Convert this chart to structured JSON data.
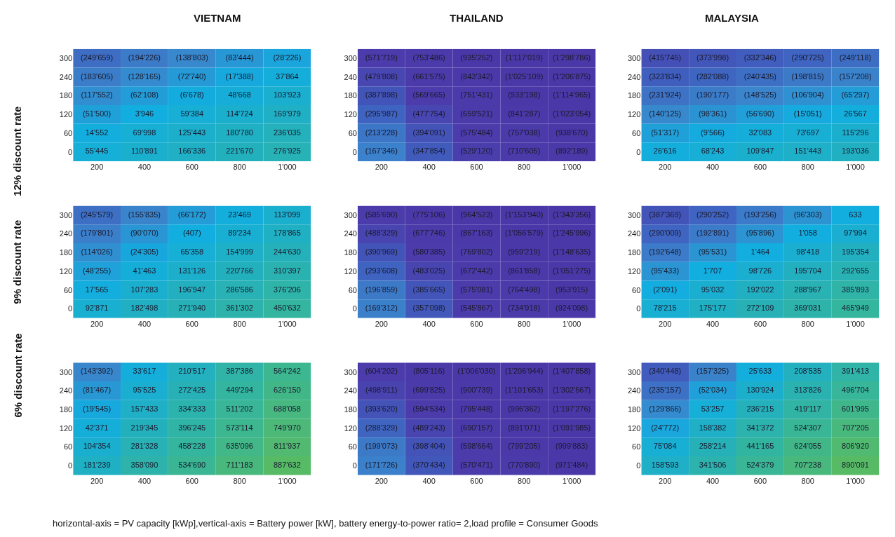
{
  "chart_data": [
    {
      "type": "heatmap",
      "title": "VIETNAM",
      "ylabel": "12% discount rate",
      "categories": [
        "200",
        "400",
        "600",
        "800",
        "1'000"
      ],
      "y_categories": [
        "300",
        "240",
        "180",
        "120",
        "60",
        "0"
      ],
      "cells": [
        [
          -249659,
          -194226,
          -138803,
          -83444,
          -28226
        ],
        [
          -183605,
          -128165,
          -72740,
          -17388,
          37864
        ],
        [
          -117552,
          -62108,
          -6678,
          48668,
          103923
        ],
        [
          -51500,
          3946,
          59384,
          114724,
          169979
        ],
        [
          14552,
          69998,
          125443,
          180780,
          236035
        ],
        [
          55445,
          110891,
          166336,
          221670,
          276925
        ]
      ],
      "cell_labels": [
        [
          "(249'659)",
          "(194'226)",
          "(138'803)",
          "(83'444)",
          "(28'226)"
        ],
        [
          "(183'605)",
          "(128'165)",
          "(72'740)",
          "(17'388)",
          "37'864"
        ],
        [
          "(117'552)",
          "(62'108)",
          "(6'678)",
          "48'668",
          "103'923"
        ],
        [
          "(51'500)",
          "3'946",
          "59'384",
          "114'724",
          "169'979"
        ],
        [
          "14'552",
          "69'998",
          "125'443",
          "180'780",
          "236'035"
        ],
        [
          "55'445",
          "110'891",
          "166'336",
          "221'670",
          "276'925"
        ]
      ]
    },
    {
      "type": "heatmap",
      "title": "THAILAND",
      "categories": [
        "200",
        "400",
        "600",
        "800",
        "1'000"
      ],
      "y_categories": [
        "300",
        "240",
        "180",
        "120",
        "60",
        "0"
      ],
      "cells": [
        [
          -571719,
          -753486,
          -935252,
          -1117019,
          -1298786
        ],
        [
          -479808,
          -661575,
          -843342,
          -1025109,
          -1206875
        ],
        [
          -387898,
          -569665,
          -751431,
          -933198,
          -1114965
        ],
        [
          -295987,
          -477754,
          -659521,
          -841287,
          -1023054
        ],
        [
          -213228,
          -394091,
          -575484,
          -757038,
          -938670
        ],
        [
          -167346,
          -347854,
          -529120,
          -710605,
          -892189
        ]
      ],
      "cell_labels": [
        [
          "(571'719)",
          "(753'486)",
          "(935'252)",
          "(1'117'019)",
          "(1'298'786)"
        ],
        [
          "(479'808)",
          "(661'575)",
          "(843'342)",
          "(1'025'109)",
          "(1'206'875)"
        ],
        [
          "(387'898)",
          "(569'665)",
          "(751'431)",
          "(933'198)",
          "(1'114'965)"
        ],
        [
          "(295'987)",
          "(477'754)",
          "(659'521)",
          "(841'287)",
          "(1'023'054)"
        ],
        [
          "(213'228)",
          "(394'091)",
          "(575'484)",
          "(757'038)",
          "(938'670)"
        ],
        [
          "(167'346)",
          "(347'854)",
          "(529'120)",
          "(710'605)",
          "(892'189)"
        ]
      ]
    },
    {
      "type": "heatmap",
      "title": "MALAYSIA",
      "categories": [
        "200",
        "400",
        "600",
        "800",
        "1'000"
      ],
      "y_categories": [
        "300",
        "240",
        "180",
        "120",
        "60",
        "0"
      ],
      "cells": [
        [
          -415745,
          -373998,
          -332346,
          -290725,
          -249118
        ],
        [
          -323834,
          -282088,
          -240435,
          -198815,
          -157208
        ],
        [
          -231924,
          -190177,
          -148525,
          -106904,
          -65297
        ],
        [
          -140125,
          -98361,
          -56690,
          -15051,
          26567
        ],
        [
          -51317,
          -9566,
          32083,
          73697,
          115296
        ],
        [
          26616,
          68243,
          109847,
          151443,
          193036
        ]
      ],
      "cell_labels": [
        [
          "(415'745)",
          "(373'998)",
          "(332'346)",
          "(290'725)",
          "(249'118)"
        ],
        [
          "(323'834)",
          "(282'088)",
          "(240'435)",
          "(198'815)",
          "(157'208)"
        ],
        [
          "(231'924)",
          "(190'177)",
          "(148'525)",
          "(106'904)",
          "(65'297)"
        ],
        [
          "(140'125)",
          "(98'361)",
          "(56'690)",
          "(15'051)",
          "26'567"
        ],
        [
          "(51'317)",
          "(9'566)",
          "32'083",
          "73'697",
          "115'296"
        ],
        [
          "26'616",
          "68'243",
          "109'847",
          "151'443",
          "193'036"
        ]
      ]
    },
    {
      "type": "heatmap",
      "ylabel": "9% discount rate",
      "categories": [
        "200",
        "400",
        "600",
        "800",
        "1'000"
      ],
      "y_categories": [
        "300",
        "240",
        "180",
        "120",
        "60",
        "0"
      ],
      "cells": [
        [
          -245579,
          -155835,
          -66172,
          23469,
          113099
        ],
        [
          -179801,
          -90070,
          -407,
          89234,
          178865
        ],
        [
          -114026,
          -24305,
          65358,
          154999,
          244630
        ],
        [
          -48255,
          41463,
          131126,
          220766,
          310397
        ],
        [
          17565,
          107283,
          196947,
          286586,
          376206
        ],
        [
          92871,
          182498,
          271940,
          361302,
          450632
        ]
      ],
      "cell_labels": [
        [
          "(245'579)",
          "(155'835)",
          "(66'172)",
          "23'469",
          "113'099"
        ],
        [
          "(179'801)",
          "(90'070)",
          "(407)",
          "89'234",
          "178'865"
        ],
        [
          "(114'026)",
          "(24'305)",
          "65'358",
          "154'999",
          "244'630"
        ],
        [
          "(48'255)",
          "41'463",
          "131'126",
          "220'766",
          "310'397"
        ],
        [
          "17'565",
          "107'283",
          "196'947",
          "286'586",
          "376'206"
        ],
        [
          "92'871",
          "182'498",
          "271'940",
          "361'302",
          "450'632"
        ]
      ]
    },
    {
      "type": "heatmap",
      "categories": [
        "200",
        "400",
        "600",
        "800",
        "1'000"
      ],
      "y_categories": [
        "300",
        "240",
        "180",
        "120",
        "60",
        "0"
      ],
      "cells": [
        [
          -585690,
          -775106,
          -964523,
          -1153940,
          -1343356
        ],
        [
          -488329,
          -677746,
          -867163,
          -1056579,
          -1245996
        ],
        [
          -390969,
          -580385,
          -769802,
          -959219,
          -1148635
        ],
        [
          -293608,
          -483025,
          -672442,
          -861858,
          -1051275
        ],
        [
          -196859,
          -385665,
          -575081,
          -764498,
          -953915
        ],
        [
          -169312,
          -357098,
          -545867,
          -734918,
          -924098
        ]
      ],
      "cell_labels": [
        [
          "(585'690)",
          "(775'106)",
          "(964'523)",
          "(1'153'940)",
          "(1'343'356)"
        ],
        [
          "(488'329)",
          "(677'746)",
          "(867'163)",
          "(1'056'579)",
          "(1'245'996)"
        ],
        [
          "(390'969)",
          "(580'385)",
          "(769'802)",
          "(959'219)",
          "(1'148'635)"
        ],
        [
          "(293'608)",
          "(483'025)",
          "(672'442)",
          "(861'858)",
          "(1'051'275)"
        ],
        [
          "(196'859)",
          "(385'665)",
          "(575'081)",
          "(764'498)",
          "(953'915)"
        ],
        [
          "(169'312)",
          "(357'098)",
          "(545'867)",
          "(734'918)",
          "(924'098)"
        ]
      ]
    },
    {
      "type": "heatmap",
      "categories": [
        "200",
        "400",
        "600",
        "800",
        "1'000"
      ],
      "y_categories": [
        "300",
        "240",
        "180",
        "120",
        "60",
        "0"
      ],
      "cells": [
        [
          -387369,
          -290252,
          -193256,
          -96303,
          633
        ],
        [
          -290009,
          -192891,
          -95896,
          1058,
          97994
        ],
        [
          -192648,
          -95531,
          1464,
          98418,
          195354
        ],
        [
          -95433,
          1707,
          98726,
          195704,
          292655
        ],
        [
          -2091,
          95032,
          192022,
          288967,
          385893
        ],
        [
          78215,
          175177,
          272109,
          369031,
          465949
        ]
      ],
      "cell_labels": [
        [
          "(387'369)",
          "(290'252)",
          "(193'256)",
          "(96'303)",
          "633"
        ],
        [
          "(290'009)",
          "(192'891)",
          "(95'896)",
          "1'058",
          "97'994"
        ],
        [
          "(192'648)",
          "(95'531)",
          "1'464",
          "98'418",
          "195'354"
        ],
        [
          "(95'433)",
          "1'707",
          "98'726",
          "195'704",
          "292'655"
        ],
        [
          "(2'091)",
          "95'032",
          "192'022",
          "288'967",
          "385'893"
        ],
        [
          "78'215",
          "175'177",
          "272'109",
          "369'031",
          "465'949"
        ]
      ]
    },
    {
      "type": "heatmap",
      "ylabel": "6% discount rate",
      "categories": [
        "200",
        "400",
        "600",
        "800",
        "1'000"
      ],
      "y_categories": [
        "300",
        "240",
        "180",
        "120",
        "60",
        "0"
      ],
      "cells": [
        [
          -143392,
          33617,
          210517,
          387386,
          564242
        ],
        [
          -81467,
          95525,
          272425,
          449294,
          626150
        ],
        [
          -19545,
          157433,
          334333,
          511202,
          688058
        ],
        [
          42371,
          219345,
          396245,
          573114,
          749970
        ],
        [
          104354,
          281328,
          458228,
          635096,
          811937
        ],
        [
          181239,
          358090,
          534690,
          711183,
          887632
        ]
      ],
      "cell_labels": [
        [
          "(143'392)",
          "33'617",
          "210'517",
          "387'386",
          "564'242"
        ],
        [
          "(81'467)",
          "95'525",
          "272'425",
          "449'294",
          "626'150"
        ],
        [
          "(19'545)",
          "157'433",
          "334'333",
          "511'202",
          "688'058"
        ],
        [
          "42'371",
          "219'345",
          "396'245",
          "573'114",
          "749'970"
        ],
        [
          "104'354",
          "281'328",
          "458'228",
          "635'096",
          "811'937"
        ],
        [
          "181'239",
          "358'090",
          "534'690",
          "711'183",
          "887'632"
        ]
      ]
    },
    {
      "type": "heatmap",
      "categories": [
        "200",
        "400",
        "600",
        "800",
        "1'000"
      ],
      "y_categories": [
        "300",
        "240",
        "180",
        "120",
        "60",
        "0"
      ],
      "cells": [
        [
          -604202,
          -805116,
          -1006030,
          -1206944,
          -1407858
        ],
        [
          -498911,
          -699825,
          -900739,
          -1101653,
          -1302567
        ],
        [
          -393620,
          -594534,
          -795448,
          -996362,
          -1197276
        ],
        [
          -288329,
          -489243,
          -690157,
          -891071,
          -1091985
        ],
        [
          -199073,
          -398404,
          -598664,
          -799205,
          -999883
        ],
        [
          -171726,
          -370434,
          -570471,
          -770890,
          -971484
        ]
      ],
      "cell_labels": [
        [
          "(604'202)",
          "(805'116)",
          "(1'006'030)",
          "(1'206'944)",
          "(1'407'858)"
        ],
        [
          "(498'911)",
          "(699'825)",
          "(900'739)",
          "(1'101'653)",
          "(1'302'567)"
        ],
        [
          "(393'620)",
          "(594'534)",
          "(795'448)",
          "(996'362)",
          "(1'197'276)"
        ],
        [
          "(288'329)",
          "(489'243)",
          "(690'157)",
          "(891'071)",
          "(1'091'985)"
        ],
        [
          "(199'073)",
          "(398'404)",
          "(598'664)",
          "(799'205)",
          "(999'883)"
        ],
        [
          "(171'726)",
          "(370'434)",
          "(570'471)",
          "(770'890)",
          "(971'484)"
        ]
      ]
    },
    {
      "type": "heatmap",
      "categories": [
        "200",
        "400",
        "600",
        "800",
        "1'000"
      ],
      "y_categories": [
        "300",
        "240",
        "180",
        "120",
        "60",
        "0"
      ],
      "cells": [
        [
          -340448,
          -157325,
          25633,
          208535,
          391413
        ],
        [
          -235157,
          -52034,
          130924,
          313826,
          496704
        ],
        [
          -129866,
          53257,
          236215,
          419117,
          601995
        ],
        [
          -24772,
          158382,
          341372,
          524307,
          707205
        ],
        [
          75084,
          258214,
          441165,
          624055,
          806920
        ],
        [
          158593,
          341506,
          524379,
          707238,
          890091
        ]
      ],
      "cell_labels": [
        [
          "(340'448)",
          "(157'325)",
          "25'633",
          "208'535",
          "391'413"
        ],
        [
          "(235'157)",
          "(52'034)",
          "130'924",
          "313'826",
          "496'704"
        ],
        [
          "(129'866)",
          "53'257",
          "236'215",
          "419'117",
          "601'995"
        ],
        [
          "(24'772)",
          "158'382",
          "341'372",
          "524'307",
          "707'205"
        ],
        [
          "75'084",
          "258'214",
          "441'165",
          "624'055",
          "806'920"
        ],
        [
          "158'593",
          "341'506",
          "524'379",
          "707'238",
          "890'091"
        ]
      ],
      "annotations": [
        "horizontal-axis = PV capacity [kWp],vertical-axis = Battery power [kW], battery energy-to-power ratio= 2,load profile = Consumer Goods"
      ]
    }
  ]
}
